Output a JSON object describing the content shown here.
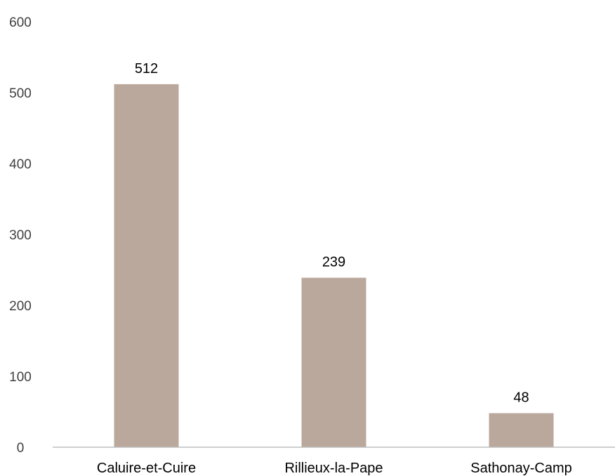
{
  "colors": {
    "bar": "#bba89d",
    "axis": "#bfbfbf",
    "tick_text": "#404040",
    "label_text": "#000000"
  },
  "chart_data": {
    "type": "bar",
    "title": "",
    "xlabel": "",
    "ylabel": "",
    "categories": [
      "Caluire-et-Cuire",
      "Rillieux-la-Pape",
      "Sathonay-Camp"
    ],
    "values": [
      512,
      239,
      48
    ],
    "ylim": [
      0,
      600
    ],
    "yticks": [
      0,
      100,
      200,
      300,
      400,
      500,
      600
    ],
    "data_labels": [
      "512",
      "239",
      "48"
    ],
    "grid": false,
    "legend": "none"
  }
}
